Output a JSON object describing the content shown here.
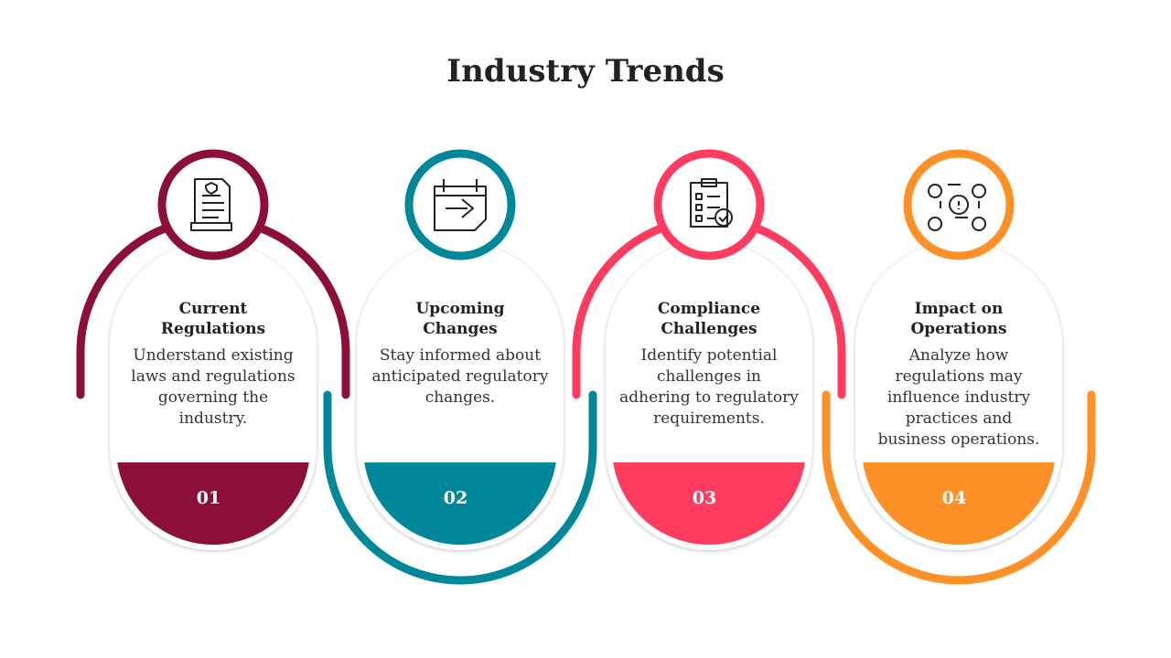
{
  "title": "Industry Trends",
  "steps": [
    {
      "heading": "Current Regulations",
      "text": "Understand existing laws and regulations governing the industry.",
      "number": "01"
    },
    {
      "heading": "Upcoming Changes",
      "text": "Stay informed about anticipated regulatory changes.",
      "number": "02"
    },
    {
      "heading": "Compliance Challenges",
      "text": "Identify potential challenges in adhering to regulatory requirements.",
      "number": "03"
    },
    {
      "heading": "Impact on Operations",
      "text": "Analyze how regulations may influence industry practices and business operations.",
      "number": "04"
    }
  ]
}
